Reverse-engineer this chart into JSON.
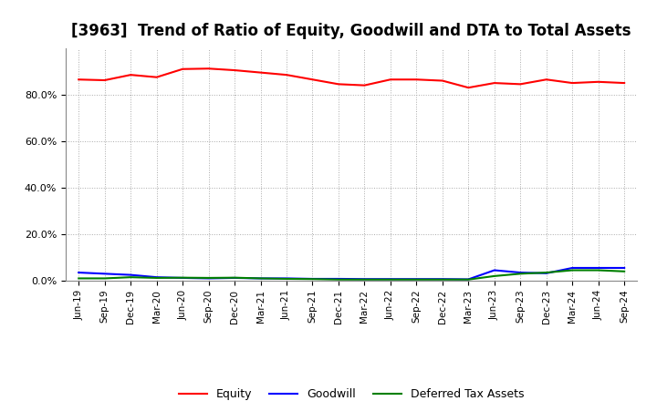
{
  "title": "[3963]  Trend of Ratio of Equity, Goodwill and DTA to Total Assets",
  "x_labels": [
    "Jun-19",
    "Sep-19",
    "Dec-19",
    "Mar-20",
    "Jun-20",
    "Sep-20",
    "Dec-20",
    "Mar-21",
    "Jun-21",
    "Sep-21",
    "Dec-21",
    "Mar-22",
    "Jun-22",
    "Sep-22",
    "Dec-22",
    "Mar-23",
    "Jun-23",
    "Sep-23",
    "Dec-23",
    "Mar-24",
    "Jun-24",
    "Sep-24"
  ],
  "equity": [
    86.5,
    86.2,
    88.5,
    87.5,
    91.0,
    91.2,
    90.5,
    89.5,
    88.5,
    86.5,
    84.5,
    84.0,
    86.5,
    86.5,
    86.0,
    83.0,
    85.0,
    84.5,
    86.5,
    85.0,
    85.5,
    85.0
  ],
  "goodwill": [
    3.5,
    3.0,
    2.5,
    1.5,
    1.2,
    1.0,
    1.2,
    1.0,
    1.0,
    0.8,
    0.8,
    0.7,
    0.7,
    0.7,
    0.7,
    0.6,
    4.5,
    3.5,
    3.2,
    5.5,
    5.5,
    5.5
  ],
  "dta": [
    1.0,
    1.0,
    1.5,
    1.2,
    1.3,
    1.2,
    1.3,
    1.0,
    0.8,
    0.7,
    0.5,
    0.5,
    0.5,
    0.5,
    0.5,
    0.5,
    2.0,
    3.0,
    3.5,
    4.5,
    4.5,
    4.0
  ],
  "equity_color": "#FF0000",
  "goodwill_color": "#0000FF",
  "dta_color": "#008000",
  "ylim": [
    0,
    100
  ],
  "yticks": [
    0,
    20,
    40,
    60,
    80
  ],
  "ytick_labels": [
    "0.0%",
    "20.0%",
    "40.0%",
    "60.0%",
    "80.0%"
  ],
  "background_color": "#FFFFFF",
  "grid_color": "#AAAAAA",
  "title_fontsize": 12,
  "legend_labels": [
    "Equity",
    "Goodwill",
    "Deferred Tax Assets"
  ]
}
